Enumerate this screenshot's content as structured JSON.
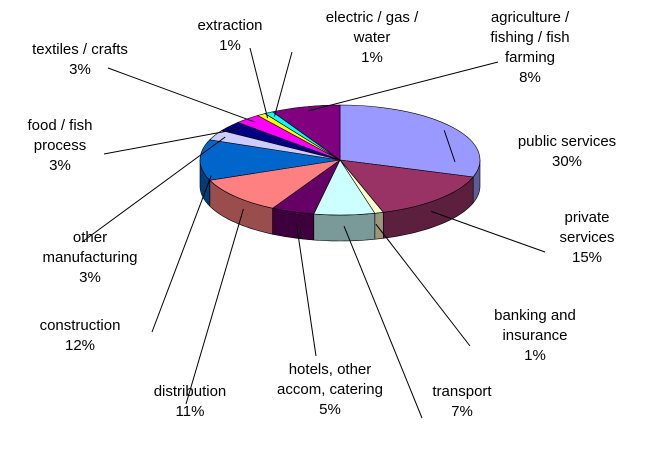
{
  "chart_data": {
    "type": "pie3d",
    "categories": [
      "public services",
      "private services",
      "banking and insurance",
      "transport",
      "hotels, other accom, catering",
      "distribution",
      "construction",
      "other manufacturing",
      "food / fish process",
      "textiles / crafts",
      "extraction",
      "electric / gas / water",
      "agriculture / fishing / fish farming"
    ],
    "values": [
      30,
      15,
      1,
      7,
      5,
      11,
      12,
      3,
      3,
      3,
      1,
      1,
      8
    ],
    "value_labels": [
      "30%",
      "15%",
      "1%",
      "7%",
      "5%",
      "11%",
      "12%",
      "3%",
      "3%",
      "3%",
      "1%",
      "1%",
      "8%"
    ],
    "colors": [
      "#9999ff",
      "#993366",
      "#ffffcc",
      "#ccffff",
      "#660066",
      "#ff8080",
      "#0066cc",
      "#ccccff",
      "#000080",
      "#ff00ff",
      "#ffff00",
      "#00ffff",
      "#800080"
    ]
  }
}
